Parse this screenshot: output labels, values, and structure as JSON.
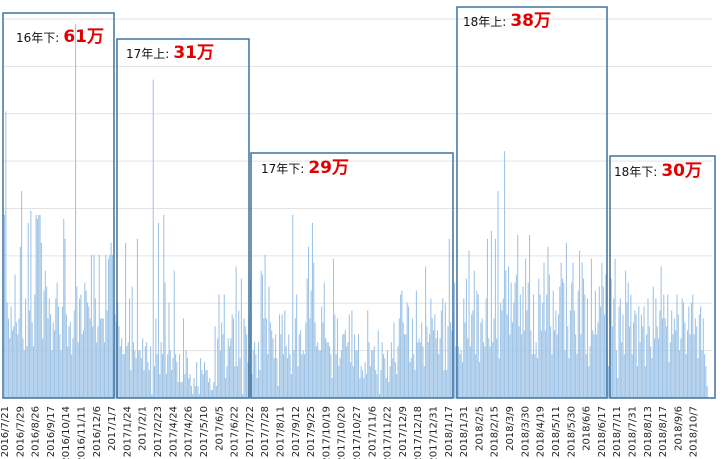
{
  "chart_data": {
    "type": "bar",
    "title": "",
    "xlabel": "",
    "ylabel": "",
    "grid": true,
    "legend": "none",
    "bar_color": "#9dc3e6",
    "box_color": "#41719c",
    "highlight_color": "#e00000",
    "x_tick_labels": [
      "2016/7/21",
      "2016/7/29",
      "2016/8/26",
      "2016/9/17",
      "2016/10/14",
      "2016/11/11",
      "2016/12/6",
      "2017/1/7",
      "2017/1/24",
      "2017/2/1",
      "2017/2/23",
      "2017/4/24",
      "2017/4/26",
      "2017/5/10",
      "2017/6/5",
      "2017/6/22",
      "2017/7/22",
      "2017/7/28",
      "2017/8/11",
      "2017/9/12",
      "2017/9/25",
      "2017/10/19",
      "2017/10/20",
      "2017/10/27",
      "2017/11/6",
      "2017/11/22",
      "2017/12/9",
      "2017/12/18",
      "2017/12/31",
      "2018/1/17",
      "2018/1/31",
      "2018/2/5",
      "2018/2/15",
      "2018/3/9",
      "2018/3/30",
      "2018/4/19",
      "2018/5/11",
      "2018/5/30",
      "2018/6/6",
      "2018/6/17",
      "2018/7/11",
      "2018/7/31",
      "2018/8/13",
      "2018/8/17",
      "2018/9/6",
      "2018/10/7"
    ],
    "periods": [
      {
        "label": "16年下:",
        "total": "61万",
        "from": "2016/7/21",
        "to": "2016/12/6"
      },
      {
        "label": "17年上:",
        "total": "31万",
        "from": "2017/1/7",
        "to": "2017/6/22"
      },
      {
        "label": "17年下:",
        "total": "29万",
        "from": "2017/7/22",
        "to": "2017/12/31"
      },
      {
        "label": "18年上:",
        "total": "38万",
        "from": "2018/1/17",
        "to": "2018/6/17"
      },
      {
        "label": "18年下:",
        "total": "30万",
        "from": "2018/7/11",
        "to": "2018/10/7"
      }
    ],
    "y_range": [
      0,
      100
    ],
    "series": [
      {
        "values": [
          46,
          72,
          24,
          20,
          15,
          23,
          17,
          18,
          31,
          19,
          16,
          20,
          38,
          52,
          15,
          12,
          25,
          13,
          44,
          22,
          47,
          19,
          13,
          26,
          46,
          45,
          46,
          46,
          39,
          15,
          27,
          32,
          28,
          20,
          25,
          21,
          12,
          19,
          17,
          25,
          29,
          23,
          16,
          12,
          23,
          45,
          40,
          21,
          13,
          18,
          19,
          11,
          15,
          22,
          94,
          28,
          14,
          25,
          26,
          16,
          17,
          29,
          27,
          24,
          23,
          20,
          36,
          18,
          36,
          25,
          14,
          18,
          36,
          20,
          20,
          20,
          14,
          36,
          22,
          35,
          36,
          39,
          36,
          12,
          21,
          19,
          24,
          18,
          13,
          15,
          11,
          11,
          39,
          13,
          14,
          25,
          7,
          28,
          14,
          12,
          10,
          40,
          12,
          12,
          10,
          15,
          7,
          13,
          14,
          9,
          7,
          13,
          1,
          80,
          8,
          20,
          11,
          44,
          6,
          14,
          11,
          46,
          29,
          6,
          11,
          24,
          12,
          7,
          10,
          32,
          11,
          9,
          4,
          11,
          4,
          4,
          20,
          6,
          12,
          10,
          5,
          6,
          3,
          1,
          5,
          3,
          9,
          3,
          1,
          10,
          7,
          6,
          9,
          7,
          7,
          4,
          5,
          2,
          2,
          4,
          18,
          3,
          15,
          26,
          12,
          19,
          16,
          26,
          5,
          8,
          15,
          13,
          15,
          21,
          20,
          8,
          33,
          8,
          22,
          10,
          30,
          1,
          20,
          18,
          16,
          9,
          21,
          30,
          6,
          12,
          14,
          11,
          5,
          14,
          7,
          32,
          31,
          20,
          36,
          20,
          11,
          28,
          19,
          17,
          15,
          10,
          16,
          10,
          3,
          21,
          16,
          21,
          11,
          22,
          13,
          10,
          16,
          11,
          6,
          46,
          12,
          20,
          26,
          8,
          16,
          17,
          11,
          12,
          11,
          19,
          30,
          38,
          20,
          27,
          44,
          34,
          19,
          13,
          14,
          12,
          12,
          23,
          19,
          29,
          15,
          14,
          14,
          13,
          11,
          5,
          35,
          21,
          11,
          20,
          8,
          10,
          12,
          16,
          16,
          17,
          13,
          14,
          21,
          9,
          22,
          8,
          16,
          12,
          12,
          16,
          5,
          8,
          7,
          5,
          9,
          6,
          22,
          14,
          8,
          12,
          12,
          13,
          7,
          6,
          17,
          1,
          7,
          14,
          11,
          10,
          5,
          12,
          4,
          8,
          14,
          10,
          19,
          9,
          6,
          13,
          20,
          26,
          27,
          19,
          16,
          16,
          24,
          23,
          9,
          10,
          20,
          11,
          7,
          27,
          14,
          15,
          14,
          19,
          13,
          8,
          33,
          18,
          14,
          16,
          25,
          20,
          17,
          21,
          15,
          17,
          11,
          15,
          22,
          25,
          7,
          24,
          7,
          18,
          40,
          19,
          17,
          22,
          29,
          13,
          8,
          13,
          11,
          12,
          9,
          25,
          19,
          30,
          15,
          37,
          13,
          21,
          22,
          32,
          11,
          27,
          26,
          9,
          19,
          20,
          14,
          13,
          25,
          40,
          15,
          13,
          42,
          14,
          20,
          40,
          15,
          52,
          10,
          24,
          22,
          25,
          62,
          32,
          21,
          33,
          16,
          29,
          19,
          24,
          29,
          31,
          41,
          18,
          26,
          16,
          28,
          17,
          35,
          22,
          29,
          41,
          17,
          11,
          26,
          11,
          14,
          10,
          30,
          26,
          17,
          24,
          34,
          17,
          26,
          38,
          31,
          18,
          11,
          27,
          17,
          22,
          16,
          21,
          28,
          34,
          30,
          29,
          12,
          39,
          18,
          10,
          22,
          29,
          34,
          22,
          16,
          11,
          27,
          37,
          16,
          34,
          30,
          26,
          11,
          25,
          8,
          13,
          35,
          17,
          16,
          27,
          16,
          19,
          28,
          23,
          34,
          28,
          21,
          31,
          12,
          8,
          29,
          30,
          18,
          25,
          35,
          12,
          5,
          23,
          25,
          14,
          21,
          11,
          32,
          24,
          29,
          18,
          26,
          11,
          19,
          22,
          21,
          8,
          23,
          14,
          21,
          18,
          23,
          8,
          16,
          25,
          18,
          13,
          10,
          28,
          15,
          25,
          18,
          15,
          22,
          33,
          20,
          26,
          20,
          18,
          26,
          9,
          14,
          22,
          16,
          20,
          17,
          26,
          21,
          12,
          15,
          25,
          24,
          19,
          11,
          17,
          23,
          16,
          24,
          26,
          16,
          20,
          18,
          10,
          21,
          23,
          12,
          20,
          11,
          8,
          3
        ]
      }
    ]
  }
}
